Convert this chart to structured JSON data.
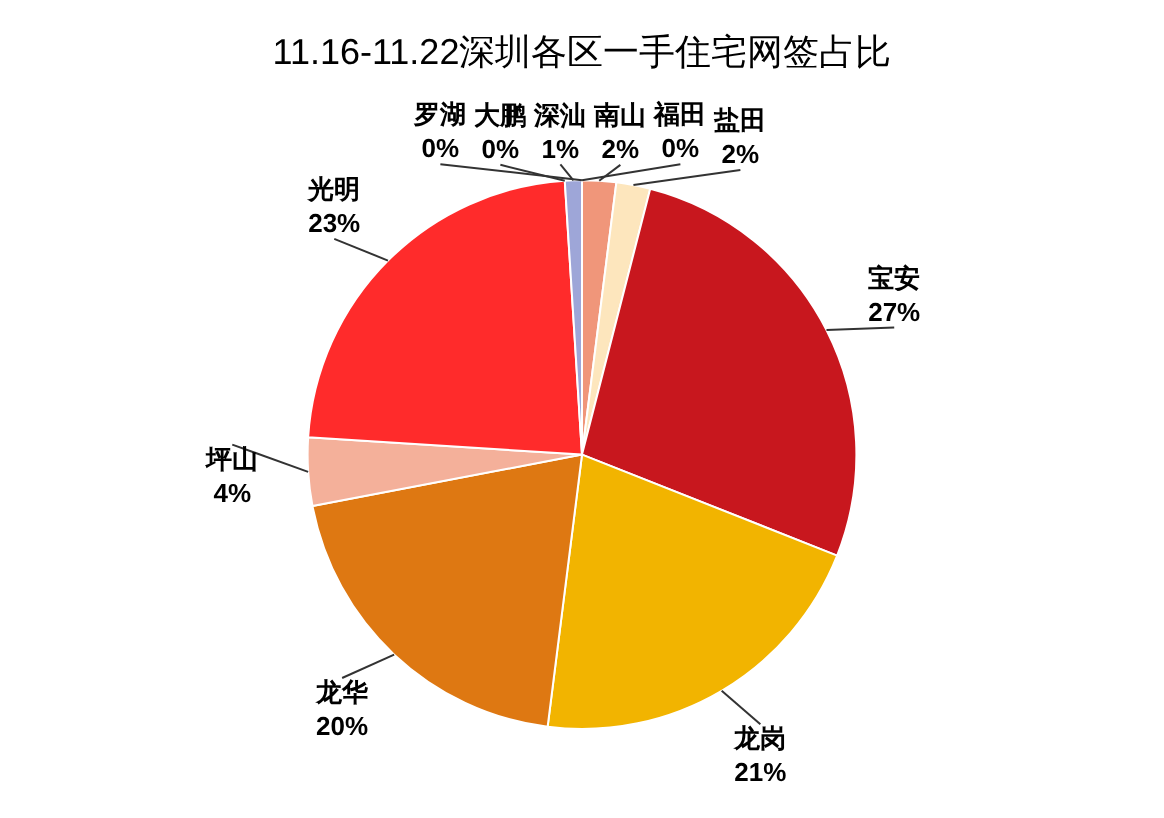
{
  "chart_data": {
    "type": "pie",
    "title": "11.16-11.22深圳各区一手住宅网签占比",
    "categories": [
      "罗湖",
      "福田",
      "南山",
      "盐田",
      "宝安",
      "龙岗",
      "龙华",
      "坪山",
      "光明",
      "大鹏",
      "深汕"
    ],
    "values": [
      0,
      0,
      2,
      2,
      27,
      21,
      20,
      4,
      23,
      0,
      1
    ],
    "value_labels": [
      "0%",
      "0%",
      "2%",
      "2%",
      "27%",
      "21%",
      "20%",
      "4%",
      "23%",
      "0%",
      "1%"
    ],
    "colors": [
      "#7f9fd0",
      "#5b7bb8",
      "#f0967a",
      "#fde6bd",
      "#c8171e",
      "#f2b400",
      "#de7812",
      "#f4b09a",
      "#ff2b2b",
      "#e85a5a",
      "#9ea6d8"
    ],
    "legend": false
  }
}
